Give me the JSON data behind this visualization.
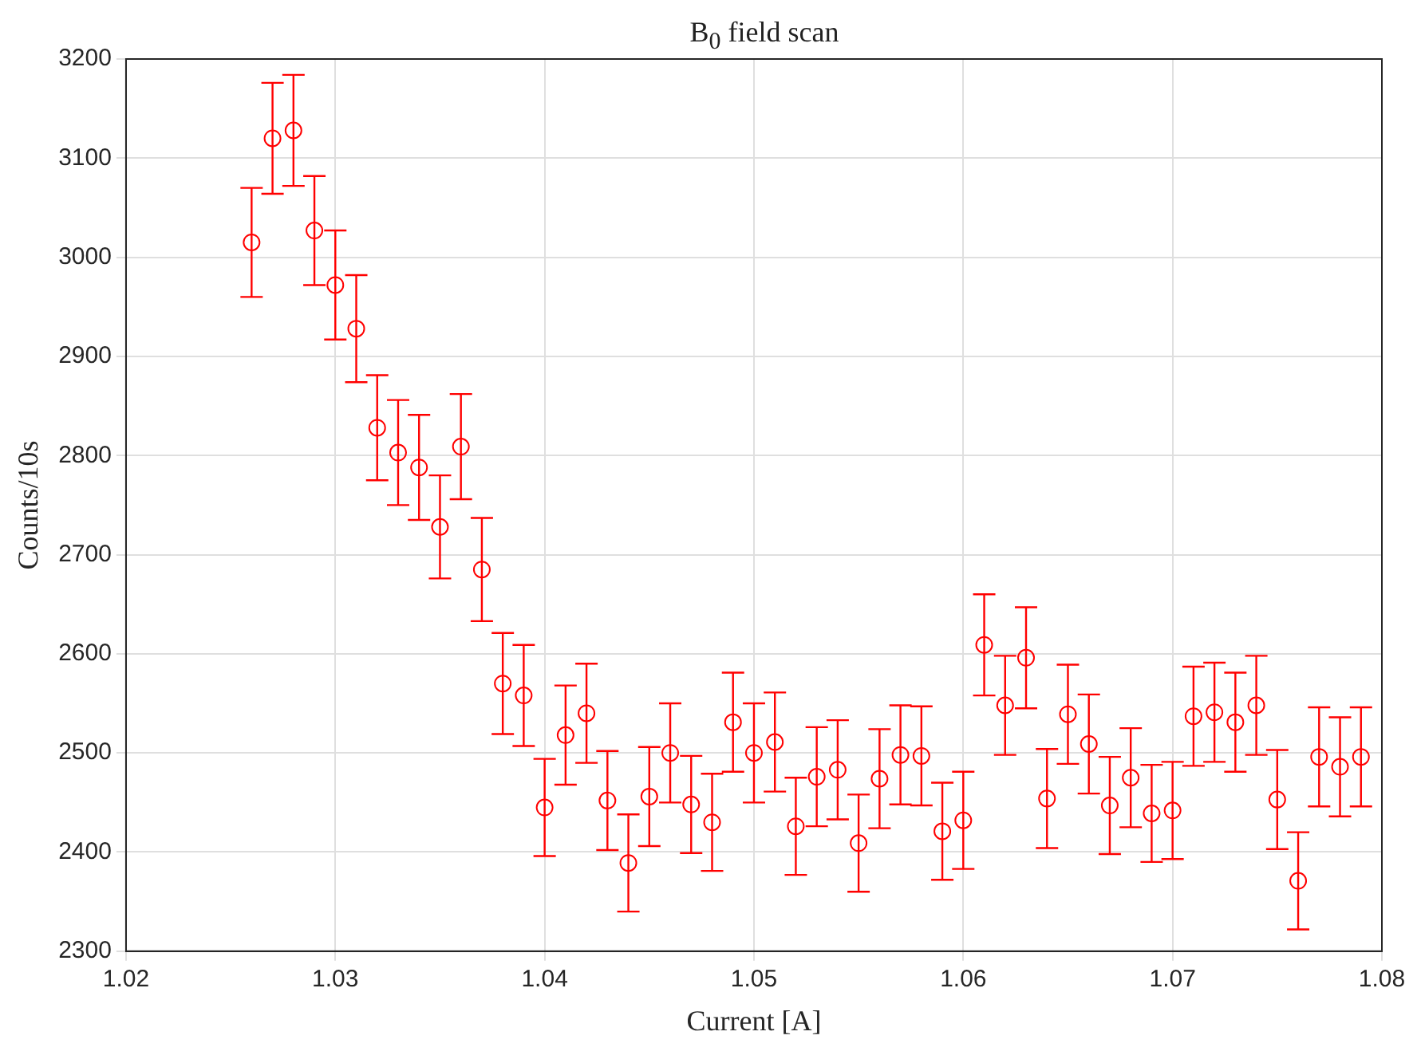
{
  "chart_data": {
    "type": "scatter",
    "title": "B$_{0}$ field scan",
    "xlabel": "Current [A]",
    "ylabel": "Counts/10s",
    "x": [
      1.026,
      1.027,
      1.028,
      1.029,
      1.03,
      1.031,
      1.032,
      1.033,
      1.034,
      1.035,
      1.036,
      1.037,
      1.038,
      1.039,
      1.04,
      1.041,
      1.042,
      1.043,
      1.044,
      1.045,
      1.046,
      1.047,
      1.048,
      1.049,
      1.05,
      1.051,
      1.052,
      1.053,
      1.054,
      1.055,
      1.056,
      1.057,
      1.058,
      1.059,
      1.06,
      1.061,
      1.062,
      1.063,
      1.064,
      1.065,
      1.066,
      1.067,
      1.068,
      1.069,
      1.07,
      1.071,
      1.072,
      1.073,
      1.074,
      1.075,
      1.076,
      1.077,
      1.078,
      1.079
    ],
    "series": [
      {
        "color": "#ff0000",
        "values": [
          3015,
          3120,
          3128,
          3027,
          2972,
          2928,
          2828,
          2803,
          2788,
          2728,
          2809,
          2685,
          2570,
          2558,
          2445,
          2518,
          2540,
          2452,
          2389,
          2456,
          2500,
          2448,
          2430,
          2531,
          2500,
          2511,
          2426,
          2476,
          2483,
          2409,
          2474,
          2498,
          2497,
          2421,
          2432,
          2609,
          2548,
          2596,
          2454,
          2539,
          2509,
          2447,
          2475,
          2439,
          2442,
          2537,
          2541,
          2531,
          2548,
          2453,
          2371,
          2496,
          2486,
          2496
        ],
        "errors": [
          55,
          56,
          56,
          55,
          55,
          54,
          53,
          53,
          53,
          52,
          53,
          52,
          51,
          51,
          49,
          50,
          50,
          50,
          49,
          50,
          50,
          49,
          49,
          50,
          50,
          50,
          49,
          50,
          50,
          49,
          50,
          50,
          50,
          49,
          49,
          51,
          50,
          51,
          50,
          50,
          50,
          49,
          50,
          49,
          49,
          50,
          50,
          50,
          50,
          50,
          49,
          50,
          50,
          50
        ]
      }
    ],
    "xlim": [
      1.02,
      1.08
    ],
    "xticks": [
      1.02,
      1.03,
      1.04,
      1.05,
      1.06,
      1.07,
      1.08
    ],
    "ylim": [
      2300,
      3200
    ],
    "yticks": [
      2300,
      2400,
      2500,
      2600,
      2700,
      2800,
      2900,
      3000,
      3100,
      3200
    ],
    "grid": true,
    "legend": false,
    "marker": "circle",
    "line_style": "none"
  }
}
